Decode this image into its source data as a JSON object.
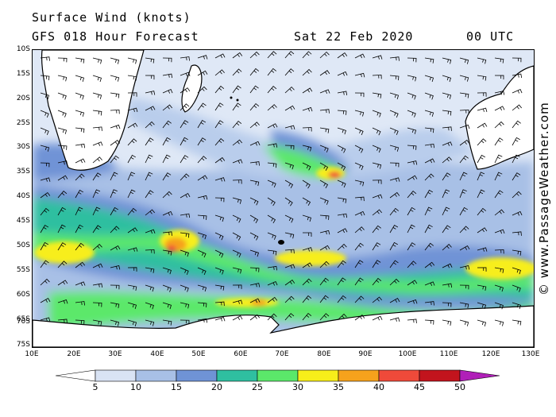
{
  "header": {
    "title_line1": "Surface Wind (knots)",
    "title_line2": "GFS 018 Hour Forecast",
    "date": "Sat 22 Feb 2020",
    "time": "00 UTC"
  },
  "credit": "© www.PassageWeather.com",
  "axes": {
    "lat_labels": [
      "10S",
      "15S",
      "20S",
      "25S",
      "30S",
      "35S",
      "40S",
      "45S",
      "50S",
      "55S",
      "60S",
      "65S",
      "70S",
      "75S"
    ],
    "lon_labels": [
      "10E",
      "20E",
      "30E",
      "40E",
      "50E",
      "60E",
      "70E",
      "80E",
      "90E",
      "100E",
      "110E",
      "120E",
      "130E"
    ]
  },
  "colorbar": {
    "tick_labels": [
      "5",
      "10",
      "15",
      "20",
      "25",
      "30",
      "35",
      "40",
      "45",
      "50"
    ],
    "colors": [
      "#ffffff",
      "#d9e3f4",
      "#a8c0e6",
      "#6f93d6",
      "#2fbfa0",
      "#5be86a",
      "#f7ee1a",
      "#f6a21c",
      "#ef4a3a",
      "#c2141d",
      "#b01fb8"
    ]
  },
  "map": {
    "land_color": "#ffffff",
    "coast_color": "#000000",
    "barb_color": "#000000"
  }
}
